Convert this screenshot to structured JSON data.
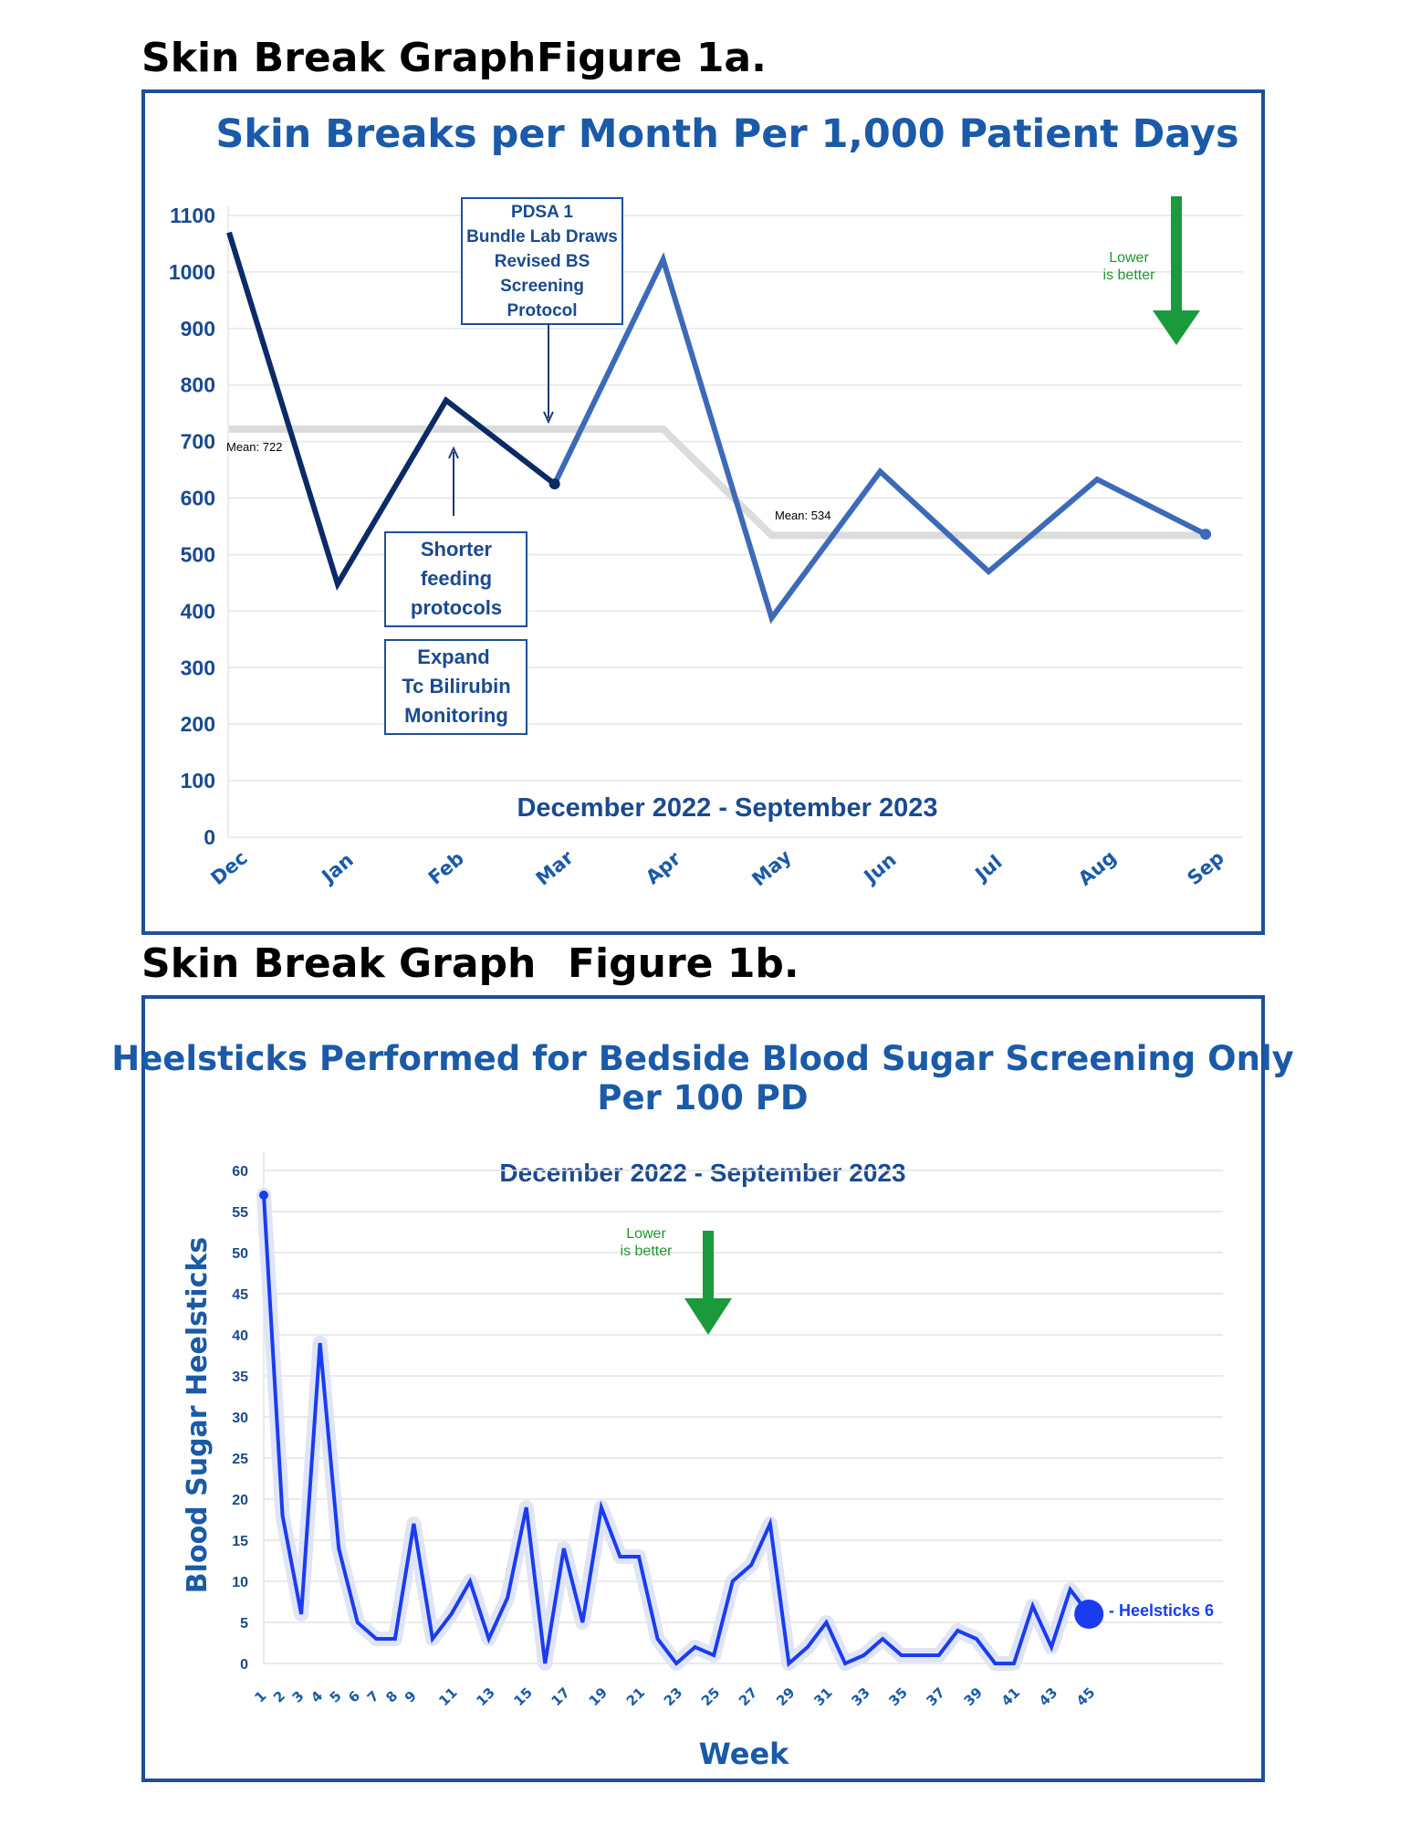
{
  "figure_a": {
    "heading_left": "Skin Break Graph",
    "heading_right": "Figure 1a.",
    "chart_title": "Skin Breaks per Month Per 1,000 Patient Days",
    "date_range": "December 2022 - September 2023",
    "annotations": {
      "pdsa": [
        "PDSA 1",
        "Bundle Lab Draws",
        "Revised BS",
        "Screening",
        "Protocol"
      ],
      "feeding": [
        "Shorter",
        "feeding",
        "protocols"
      ],
      "bilirubin": [
        "Expand",
        "Tc Bilirubin",
        "Monitoring"
      ],
      "mean1": "Mean: 722",
      "mean2": "Mean: 534",
      "lower_better": [
        "Lower",
        "is better"
      ]
    },
    "colors": {
      "pre": "#0b2a66",
      "post": "#3d6ab8",
      "mean": "#dcdcdc",
      "arrow": "#1a9a3a"
    }
  },
  "figure_b": {
    "heading_left": "Skin Break Graph",
    "heading_right": "Figure 1b.",
    "chart_title_line1": "Heelsticks Performed for Bedside Blood Sugar Screening Only",
    "chart_title_line2": "Per 100 PD",
    "date_range": "December 2022 - September 2023",
    "lower_better": [
      "Lower",
      "is better"
    ],
    "end_label": "- Heelsticks 6",
    "colors": {
      "line": "#1a3cf0",
      "glow": "#dfe4f7",
      "arrow": "#1a9a3a"
    }
  },
  "chart_data": [
    {
      "type": "line",
      "title": "Skin Breaks per Month Per 1,000 Patient Days",
      "xlabel": "",
      "ylabel": "",
      "categories": [
        "Dec",
        "Jan",
        "Feb",
        "Mar",
        "Apr",
        "May",
        "Jun",
        "Jul",
        "Aug",
        "Sep"
      ],
      "series": [
        {
          "values": [
            1070,
            448,
            773,
            625,
            1022,
            388,
            647,
            470,
            633,
            536
          ]
        }
      ],
      "mean_lines": [
        {
          "label": "Mean: 722",
          "value": 722,
          "from": "Dec",
          "to": "Apr"
        },
        {
          "label": "Mean: 534",
          "value": 534,
          "from": "May",
          "to": "Sep"
        }
      ],
      "ylim": [
        0,
        1100
      ],
      "yticks": [
        0,
        100,
        200,
        300,
        400,
        500,
        600,
        700,
        800,
        900,
        1000,
        1100
      ],
      "grid": true
    },
    {
      "type": "line",
      "title": "Heelsticks Performed for Bedside Blood Sugar Screening Only Per 100 PD",
      "xlabel": "Week",
      "ylabel": "Blood Sugar Heelsticks",
      "x": [
        1,
        2,
        3,
        4,
        5,
        6,
        7,
        8,
        9,
        10,
        11,
        12,
        13,
        14,
        15,
        16,
        17,
        18,
        19,
        20,
        21,
        22,
        23,
        24,
        25,
        26,
        27,
        28,
        29,
        30,
        31,
        32,
        33,
        34,
        35,
        36,
        37,
        38,
        39,
        40,
        41,
        42,
        43,
        44,
        45
      ],
      "xticks": [
        "1",
        "2",
        "3",
        "4",
        "5",
        "6",
        "7",
        "8",
        "9",
        "11",
        "13",
        "15",
        "17",
        "19",
        "21",
        "23",
        "25",
        "27",
        "29",
        "31",
        "33",
        "35",
        "37",
        "39",
        "41",
        "43",
        "45"
      ],
      "series": [
        {
          "name": "Heelsticks",
          "values": [
            57,
            18,
            6,
            39,
            14,
            5,
            3,
            3,
            17,
            3,
            6,
            10,
            3,
            8,
            19,
            0,
            14,
            5,
            19,
            13,
            13,
            3,
            0,
            2,
            1,
            10,
            12,
            17,
            0,
            2,
            5,
            0,
            1,
            3,
            1,
            1,
            1,
            4,
            3,
            0,
            0,
            7,
            2,
            9,
            6
          ]
        }
      ],
      "ylim": [
        0,
        60
      ],
      "yticks": [
        0,
        5,
        10,
        15,
        20,
        25,
        30,
        35,
        40,
        45,
        50,
        55,
        60
      ],
      "grid": true
    }
  ]
}
